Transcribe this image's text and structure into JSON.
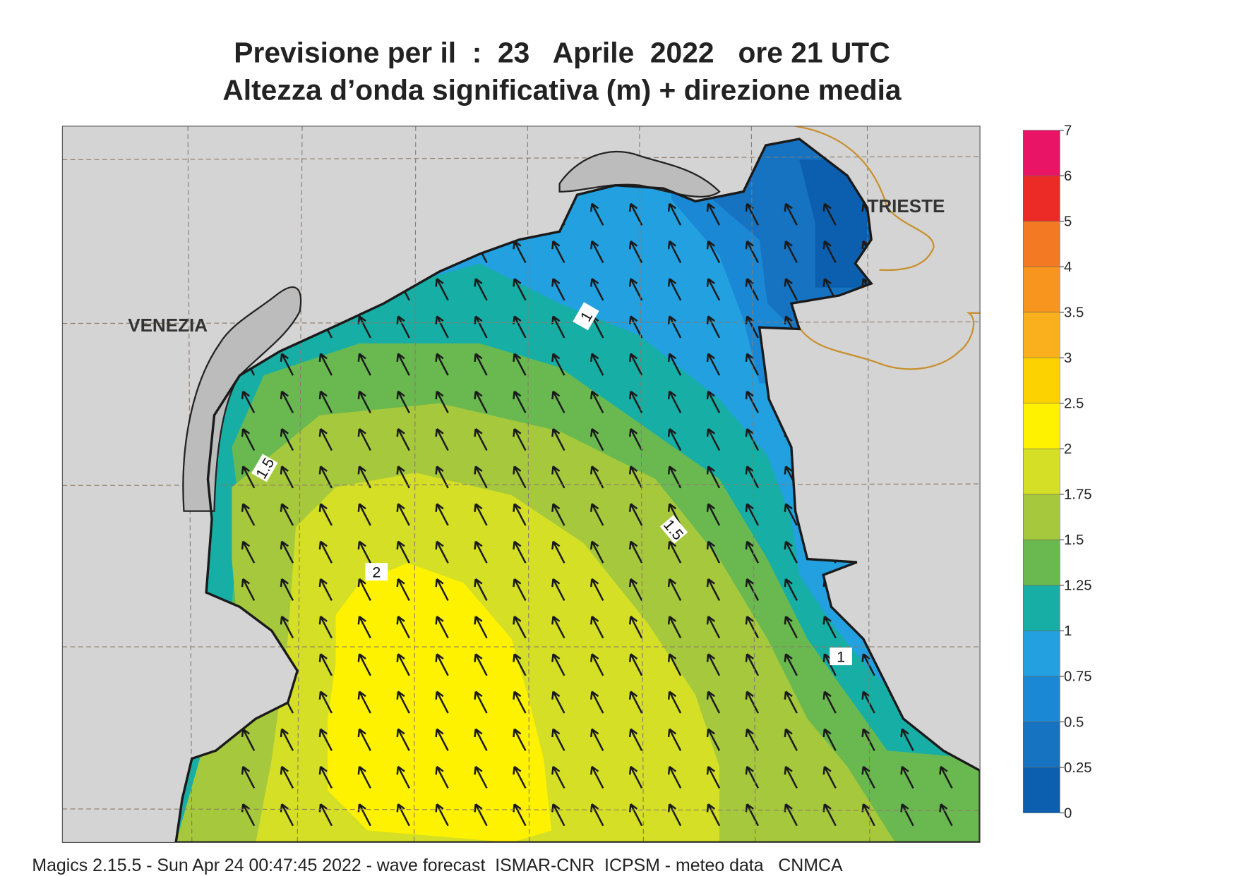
{
  "header": {
    "title": "Previsione per il  :  23   Aprile  2022   ore 21 UTC",
    "subtitle": "Altezza d’onda significativa (m) + direzione media"
  },
  "map": {
    "cities": [
      "VENEZIA",
      "TRIESTE"
    ],
    "contour_labels": [
      1,
      1.5,
      2,
      1.5,
      1
    ]
  },
  "colorbar": {
    "levels": [
      0,
      0.25,
      0.5,
      0.75,
      1,
      1.25,
      1.5,
      1.75,
      2,
      2.5,
      3,
      3.5,
      4,
      5,
      6,
      7
    ],
    "colors": [
      "#0b5fae",
      "#1673c2",
      "#1a88d4",
      "#22a0e0",
      "#17aea6",
      "#6ab950",
      "#a6c83c",
      "#d4df25",
      "#fff200",
      "#fcd200",
      "#f9b01c",
      "#f7951e",
      "#f37a22",
      "#ec2a26",
      "#e91466"
    ]
  },
  "footer": "Magics 2.15.5 - Sun Apr 24 00:47:45 2022 - wave forecast  ISMAR-CNR  ICPSM - meteo data   CNMCA"
}
